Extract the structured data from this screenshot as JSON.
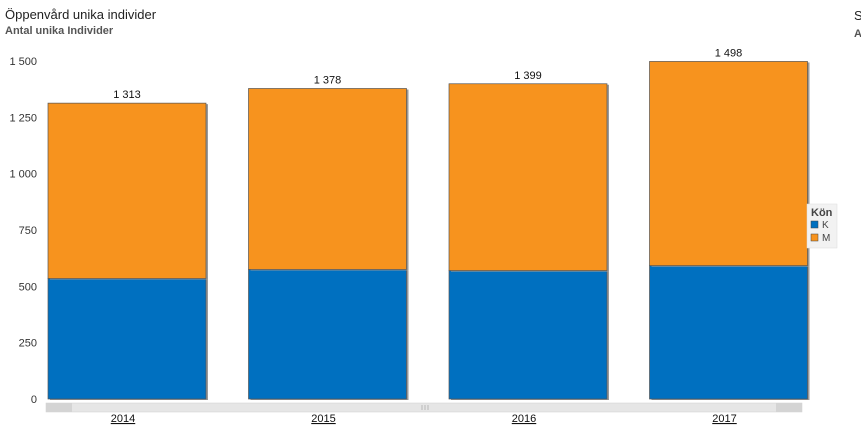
{
  "title": "Öppenvård unika individer",
  "subtitle": "Antal unika Individer",
  "edge_clip": [
    "S",
    "A"
  ],
  "colors": {
    "K": "#0070c0",
    "M": "#f7931e"
  },
  "chart_data": {
    "type": "bar",
    "stacked": true,
    "title": "Öppenvård unika individer",
    "subtitle": "Antal unika Individer",
    "categories": [
      "2014",
      "2015",
      "2016",
      "2017"
    ],
    "series": [
      {
        "name": "K",
        "values": [
          535,
          575,
          570,
          592
        ]
      },
      {
        "name": "M",
        "values": [
          778,
          803,
          829,
          906
        ]
      }
    ],
    "totals": [
      1313,
      1378,
      1399,
      1498
    ],
    "total_labels": [
      "1 313",
      "1 378",
      "1 399",
      "1 498"
    ],
    "ylim": [
      0,
      1500
    ],
    "yticks": [
      0,
      250,
      500,
      750,
      1000,
      1250,
      1500
    ],
    "ytick_labels": [
      "0",
      "250",
      "500",
      "750",
      "1 000",
      "1 250",
      "1 500"
    ],
    "grid": false,
    "legend": {
      "title": "Kön",
      "position": "right",
      "items": [
        "K",
        "M"
      ]
    }
  }
}
